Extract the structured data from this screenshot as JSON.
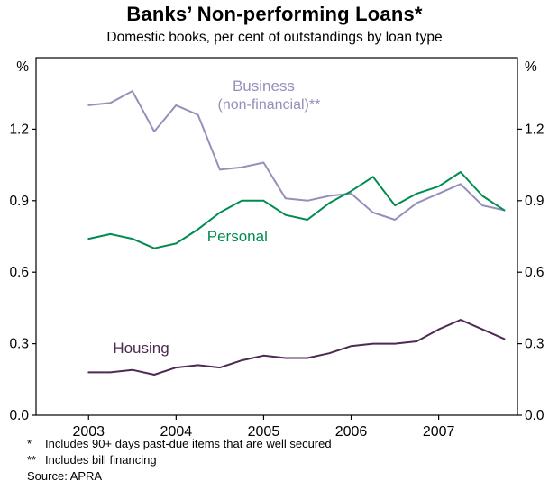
{
  "header": {
    "title": "Banks’ Non-performing Loans*",
    "subtitle": "Domestic books, per cent of outstandings by loan type"
  },
  "footnotes": {
    "items": [
      {
        "marker": "*",
        "text": "Includes 90+ days past-due items that are well secured"
      },
      {
        "marker": "**",
        "text": "Includes bill financing"
      }
    ],
    "source": "Source: APRA"
  },
  "chart_data": {
    "type": "line",
    "title": "Banks’ Non-performing Loans*",
    "subtitle": "Domestic books, per cent of outstandings by loan type",
    "unit_left": "%",
    "unit_right": "%",
    "ylim": [
      0.0,
      1.5
    ],
    "ytick_values": [
      0.0,
      0.3,
      0.6,
      0.9,
      1.2
    ],
    "ytick_labels": [
      "0.0",
      "0.3",
      "0.6",
      "0.9",
      "1.2"
    ],
    "xlim": [
      2002.4,
      2007.9
    ],
    "xtick_years": [
      2003,
      2004,
      2005,
      2006,
      2007
    ],
    "grid": false,
    "legend_position": "inline-labels",
    "axis_color": "#000000",
    "x": [
      2003.0,
      2003.25,
      2003.5,
      2003.75,
      2004.0,
      2004.25,
      2004.5,
      2004.75,
      2005.0,
      2005.25,
      2005.5,
      2005.75,
      2006.0,
      2006.25,
      2006.5,
      2006.75,
      2007.0,
      2007.25,
      2007.5,
      2007.75
    ],
    "series": [
      {
        "name": "Business",
        "sublabel": "(non-financial)**",
        "color": "#9490ba",
        "label_pos": {
          "x": 2005.0,
          "y": 1.36
        },
        "values": [
          1.3,
          1.31,
          1.36,
          1.19,
          1.3,
          1.26,
          1.03,
          1.04,
          1.06,
          0.91,
          0.9,
          0.92,
          0.93,
          0.85,
          0.82,
          0.89,
          0.93,
          0.97,
          0.88,
          0.86
        ]
      },
      {
        "name": "Personal",
        "sublabel": "",
        "color": "#008c50",
        "label_pos": {
          "x": 2004.7,
          "y": 0.73
        },
        "values": [
          0.74,
          0.76,
          0.74,
          0.7,
          0.72,
          0.78,
          0.85,
          0.9,
          0.9,
          0.84,
          0.82,
          0.89,
          0.94,
          1.0,
          0.88,
          0.93,
          0.96,
          1.02,
          0.92,
          0.86
        ]
      },
      {
        "name": "Housing",
        "sublabel": "",
        "color": "#4d2a52",
        "label_pos": {
          "x": 2003.6,
          "y": 0.26
        },
        "values": [
          0.18,
          0.18,
          0.19,
          0.17,
          0.2,
          0.21,
          0.2,
          0.23,
          0.25,
          0.24,
          0.24,
          0.26,
          0.29,
          0.3,
          0.3,
          0.31,
          0.36,
          0.4,
          0.36,
          0.32
        ]
      }
    ]
  }
}
